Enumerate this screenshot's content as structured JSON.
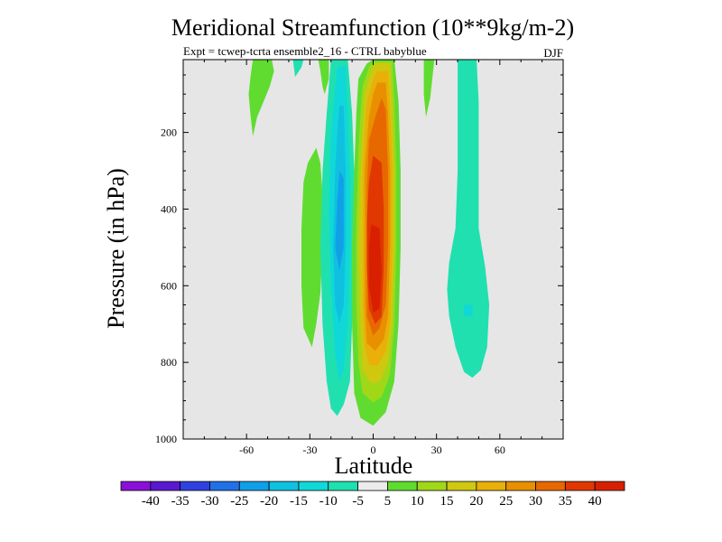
{
  "chart_data": {
    "type": "filled-contour",
    "title": "Meridional Streamfunction (10**9kg/m-2)",
    "subtitle": "Expt = tcwep-tcrta ensemble2_16 - CTRL babyblue",
    "season": "DJF",
    "xlabel": "Latitude",
    "ylabel": "Pressure (in hPa)",
    "xlim": [
      -90,
      90
    ],
    "ylim": [
      1000,
      10
    ],
    "y_inverted": true,
    "x_ticks": [
      {
        "value": -60,
        "label": "-60"
      },
      {
        "value": -30,
        "label": "-30"
      },
      {
        "value": 0,
        "label": "0"
      },
      {
        "value": 30,
        "label": "30"
      },
      {
        "value": 60,
        "label": "60"
      }
    ],
    "y_ticks": [
      {
        "value": 200,
        "label": "200"
      },
      {
        "value": 400,
        "label": "400"
      },
      {
        "value": 600,
        "label": "600"
      },
      {
        "value": 800,
        "label": "800"
      },
      {
        "value": 1000,
        "label": "1000"
      }
    ],
    "background_color": "#e6e6e6",
    "colorbar": {
      "colors": [
        "#8a10d8",
        "#5a18d0",
        "#3040e0",
        "#2070e8",
        "#10a0e8",
        "#10c0e0",
        "#10d8d8",
        "#20e0b0",
        "#ececec",
        "#60dc30",
        "#a0d818",
        "#d0c810",
        "#e8b008",
        "#e89000",
        "#e86800",
        "#e03800",
        "#d82000"
      ],
      "labels": [
        "-40",
        "-35",
        "-30",
        "-25",
        "-20",
        "-15",
        "-10",
        "-5",
        "5",
        "10",
        "15",
        "20",
        "25",
        "30",
        "35",
        "40"
      ]
    },
    "regions": [
      {
        "name": "nh-mid-green-cell",
        "color": "#60dc30",
        "points": [
          [
            -57,
            10
          ],
          [
            -48,
            10
          ],
          [
            -47,
            40
          ],
          [
            -49,
            80
          ],
          [
            -52,
            120
          ],
          [
            -55,
            160
          ],
          [
            -57,
            210
          ],
          [
            -58,
            160
          ],
          [
            -59,
            100
          ],
          [
            -58,
            50
          ]
        ]
      },
      {
        "name": "upper-small-cyan-cell",
        "color": "#20e0b0",
        "points": [
          [
            -38,
            10
          ],
          [
            -33,
            10
          ],
          [
            -34,
            30
          ],
          [
            -37,
            55
          ]
        ]
      },
      {
        "name": "upper-left-green-cell",
        "color": "#60dc30",
        "points": [
          [
            -26,
            10
          ],
          [
            -21,
            10
          ],
          [
            -21,
            60
          ],
          [
            -23,
            100
          ],
          [
            -24,
            80
          ],
          [
            -25,
            40
          ]
        ]
      },
      {
        "name": "lower-left-green-cell",
        "color": "#60dc30",
        "points": [
          [
            -27,
            240
          ],
          [
            -25,
            280
          ],
          [
            -24,
            360
          ],
          [
            -24,
            500
          ],
          [
            -25,
            620
          ],
          [
            -27,
            700
          ],
          [
            -29,
            760
          ],
          [
            -33,
            710
          ],
          [
            -34,
            600
          ],
          [
            -34,
            450
          ],
          [
            -33,
            330
          ],
          [
            -31,
            280
          ]
        ]
      },
      {
        "name": "negative-cell-outer",
        "color": "#20e0b0",
        "points": [
          [
            -20,
            10
          ],
          [
            -12,
            10
          ],
          [
            -10,
            150
          ],
          [
            -9,
            300
          ],
          [
            -9,
            500
          ],
          [
            -10,
            700
          ],
          [
            -11,
            850
          ],
          [
            -14,
            910
          ],
          [
            -17,
            940
          ],
          [
            -20,
            920
          ],
          [
            -22,
            850
          ],
          [
            -24,
            700
          ],
          [
            -25,
            500
          ],
          [
            -24,
            300
          ],
          [
            -22,
            150
          ]
        ]
      },
      {
        "name": "negative-cell-mid",
        "color": "#10d8d8",
        "points": [
          [
            -17,
            30
          ],
          [
            -13,
            25
          ],
          [
            -12,
            150
          ],
          [
            -11,
            300
          ],
          [
            -11,
            500
          ],
          [
            -12,
            700
          ],
          [
            -14,
            820
          ],
          [
            -16,
            850
          ],
          [
            -18,
            780
          ],
          [
            -20,
            600
          ],
          [
            -21,
            400
          ],
          [
            -20,
            200
          ],
          [
            -18,
            80
          ]
        ]
      },
      {
        "name": "negative-cell-inner",
        "color": "#10c0e0",
        "points": [
          [
            -16,
            130
          ],
          [
            -14,
            130
          ],
          [
            -13,
            300
          ],
          [
            -13,
            500
          ],
          [
            -14,
            650
          ],
          [
            -16,
            700
          ],
          [
            -18,
            650
          ],
          [
            -19,
            500
          ],
          [
            -18,
            300
          ],
          [
            -17,
            200
          ]
        ]
      },
      {
        "name": "negative-cell-core",
        "color": "#10a0e8",
        "points": [
          [
            -16,
            300
          ],
          [
            -14,
            320
          ],
          [
            -14,
            500
          ],
          [
            -16,
            560
          ],
          [
            -18,
            500
          ],
          [
            -17,
            380
          ]
        ]
      },
      {
        "name": "positive-cell-10",
        "color": "#60dc30",
        "points": [
          [
            -7,
            60
          ],
          [
            -3,
            20
          ],
          [
            0,
            10
          ],
          [
            10,
            10
          ],
          [
            12,
            120
          ],
          [
            13,
            300
          ],
          [
            13,
            500
          ],
          [
            12,
            700
          ],
          [
            10,
            850
          ],
          [
            6,
            930
          ],
          [
            0,
            965
          ],
          [
            -6,
            945
          ],
          [
            -9,
            880
          ],
          [
            -10,
            700
          ],
          [
            -10,
            500
          ],
          [
            -9,
            300
          ],
          [
            -8,
            150
          ]
        ]
      },
      {
        "name": "positive-cell-15",
        "color": "#a0d818",
        "points": [
          [
            -5,
            80
          ],
          [
            -2,
            30
          ],
          [
            0,
            15
          ],
          [
            9,
            15
          ],
          [
            10,
            120
          ],
          [
            11,
            300
          ],
          [
            11,
            500
          ],
          [
            10,
            700
          ],
          [
            8,
            830
          ],
          [
            4,
            890
          ],
          [
            0,
            905
          ],
          [
            -5,
            880
          ],
          [
            -7,
            800
          ],
          [
            -8,
            650
          ],
          [
            -8,
            450
          ],
          [
            -7,
            250
          ],
          [
            -6,
            150
          ]
        ]
      },
      {
        "name": "positive-cell-20",
        "color": "#d0c810",
        "points": [
          [
            -4,
            100
          ],
          [
            -1,
            40
          ],
          [
            1,
            20
          ],
          [
            8,
            20
          ],
          [
            9,
            120
          ],
          [
            10,
            300
          ],
          [
            10,
            500
          ],
          [
            9,
            700
          ],
          [
            7,
            800
          ],
          [
            3,
            850
          ],
          [
            -1,
            855
          ],
          [
            -5,
            820
          ],
          [
            -6,
            700
          ],
          [
            -7,
            500
          ],
          [
            -6,
            300
          ],
          [
            -5,
            200
          ]
        ]
      },
      {
        "name": "positive-cell-25",
        "color": "#e8b008",
        "points": [
          [
            -3,
            120
          ],
          [
            0,
            60
          ],
          [
            2,
            40
          ],
          [
            7,
            40
          ],
          [
            8,
            130
          ],
          [
            9,
            300
          ],
          [
            9,
            500
          ],
          [
            8,
            700
          ],
          [
            6,
            770
          ],
          [
            2,
            810
          ],
          [
            -2,
            805
          ],
          [
            -4,
            760
          ],
          [
            -5,
            650
          ],
          [
            -5,
            450
          ],
          [
            -5,
            300
          ],
          [
            -4,
            200
          ]
        ]
      },
      {
        "name": "positive-cell-30",
        "color": "#e89000",
        "points": [
          [
            -2,
            160
          ],
          [
            0,
            100
          ],
          [
            2,
            70
          ],
          [
            6,
            70
          ],
          [
            7,
            150
          ],
          [
            8,
            300
          ],
          [
            8,
            500
          ],
          [
            7,
            680
          ],
          [
            5,
            740
          ],
          [
            1,
            770
          ],
          [
            -3,
            750
          ],
          [
            -4,
            650
          ],
          [
            -4,
            450
          ],
          [
            -4,
            300
          ]
        ]
      },
      {
        "name": "positive-cell-35",
        "color": "#e86800",
        "points": [
          [
            -2,
            220
          ],
          [
            1,
            160
          ],
          [
            4,
            110
          ],
          [
            6,
            140
          ],
          [
            7,
            300
          ],
          [
            7,
            500
          ],
          [
            6,
            650
          ],
          [
            3,
            710
          ],
          [
            0,
            730
          ],
          [
            -3,
            680
          ],
          [
            -3,
            500
          ],
          [
            -3,
            350
          ]
        ]
      },
      {
        "name": "positive-cell-40",
        "color": "#e03800",
        "points": [
          [
            -2,
            330
          ],
          [
            0,
            260
          ],
          [
            4,
            280
          ],
          [
            5,
            400
          ],
          [
            5,
            550
          ],
          [
            4,
            680
          ],
          [
            1,
            700
          ],
          [
            -2,
            660
          ],
          [
            -3,
            550
          ],
          [
            -3,
            430
          ]
        ]
      },
      {
        "name": "positive-cell-core",
        "color": "#d82000",
        "points": [
          [
            -1,
            440
          ],
          [
            3,
            450
          ],
          [
            4,
            560
          ],
          [
            3,
            660
          ],
          [
            0,
            670
          ],
          [
            -2,
            600
          ],
          [
            -2,
            500
          ]
        ]
      },
      {
        "name": "upper-green-streak",
        "color": "#60dc30",
        "points": [
          [
            24,
            10
          ],
          [
            29,
            10
          ],
          [
            28,
            60
          ],
          [
            27,
            110
          ],
          [
            25,
            160
          ],
          [
            24,
            100
          ]
        ]
      },
      {
        "name": "sh-cyan-cell",
        "color": "#20e0b0",
        "points": [
          [
            40,
            10
          ],
          [
            49,
            10
          ],
          [
            50,
            120
          ],
          [
            50,
            300
          ],
          [
            50,
            450
          ],
          [
            53,
            550
          ],
          [
            55,
            650
          ],
          [
            54,
            760
          ],
          [
            51,
            820
          ],
          [
            47,
            840
          ],
          [
            43,
            825
          ],
          [
            39,
            760
          ],
          [
            36,
            680
          ],
          [
            35,
            610
          ],
          [
            36,
            540
          ],
          [
            39,
            450
          ],
          [
            40,
            300
          ],
          [
            40,
            150
          ]
        ]
      },
      {
        "name": "sh-cyan-core",
        "color": "#10d8d8",
        "points": [
          [
            43,
            650
          ],
          [
            47,
            650
          ],
          [
            47,
            680
          ],
          [
            43,
            680
          ]
        ]
      }
    ]
  }
}
